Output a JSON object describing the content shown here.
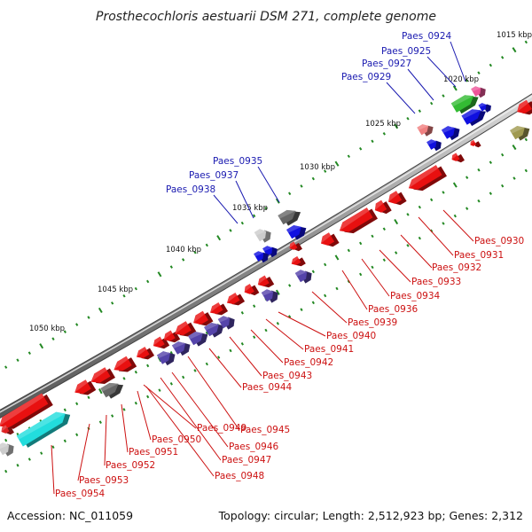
{
  "title": "Prosthecochloris aestuarii DSM 271, complete genome",
  "footer": {
    "accession": "Accession: NC_011059",
    "summary": "Topology: circular; Length: 2,512,923 bp; Genes: 2,312"
  },
  "kbp_labels": [
    "1015 kbp",
    "1020 kbp",
    "1025 kbp",
    "1030 kbp",
    "1035 kbp",
    "1040 kbp",
    "1045 kbp",
    "1050 kbp"
  ],
  "gene_labels_top": [
    "Paes_0924",
    "Paes_0925",
    "Paes_0927",
    "Paes_0929",
    "Paes_0935",
    "Paes_0937",
    "Paes_0938"
  ],
  "gene_labels_bottom": [
    "Paes_0930",
    "Paes_0931",
    "Paes_0932",
    "Paes_0933",
    "Paes_0934",
    "Paes_0936",
    "Paes_0939",
    "Paes_0940",
    "Paes_0941",
    "Paes_0942",
    "Paes_0943",
    "Paes_0944",
    "Paes_0945",
    "Paes_0946",
    "Paes_0947",
    "Paes_0948",
    "Paes_0949",
    "Paes_0950",
    "Paes_0951",
    "Paes_0952",
    "Paes_0953",
    "Paes_0954"
  ],
  "colors": {
    "forward_strand_label": "#1a1ab0",
    "reverse_strand_label": "#cc1111",
    "red_gene": "#e81010",
    "blue_gene": "#1010e0",
    "purple_gene": "#5544aa",
    "gray_gene": "#666666",
    "green_gene": "#33bb33",
    "cyan_gene": "#22dddd",
    "olive_gene": "#a09a50",
    "pink_gene": "#ee5599",
    "tick": "#228822"
  }
}
